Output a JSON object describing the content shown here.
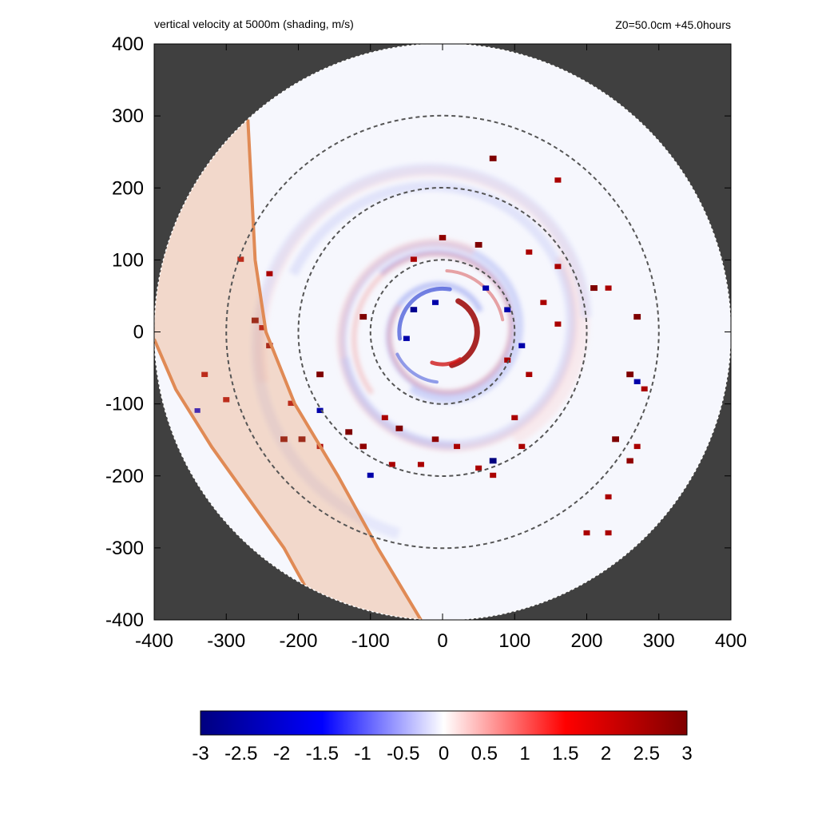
{
  "chart_data": {
    "type": "heatmap",
    "title": "vertical velocity at 5000m (shading, m/s)",
    "subtitle": "Z0=50.0cm  +45.0hours",
    "xlim": [
      -400,
      400
    ],
    "ylim": [
      -400,
      400
    ],
    "x_ticks": [
      -400,
      -300,
      -200,
      -100,
      0,
      100,
      200,
      300,
      400
    ],
    "y_ticks": [
      400,
      300,
      200,
      100,
      0,
      -100,
      -200,
      -300,
      -400
    ],
    "domain_radius": 400,
    "grid": false,
    "range_rings": [
      100,
      200,
      300
    ],
    "colorbar": {
      "min": -3,
      "max": 3,
      "ticks": [
        "-3",
        "-2.5",
        "-2",
        "-1.5",
        "-1",
        "-0.5",
        "0",
        "0.5",
        "1",
        "1.5",
        "2",
        "2.5",
        "3"
      ],
      "colors": [
        "#00007f",
        "#0000ff",
        "#ffffff",
        "#ff0000",
        "#7f0000"
      ]
    },
    "shaded_band": {
      "color": "#e8915a",
      "left_edge": [
        [
          -400,
          -10
        ],
        [
          -370,
          -80
        ],
        [
          -320,
          -160
        ],
        [
          -270,
          -230
        ],
        [
          -220,
          -300
        ],
        [
          -165,
          -400
        ]
      ],
      "right_edge": [
        [
          -270,
          295
        ],
        [
          -265,
          200
        ],
        [
          -260,
          100
        ],
        [
          -245,
          0
        ],
        [
          -205,
          -100
        ],
        [
          -145,
          -200
        ],
        [
          -90,
          -300
        ],
        [
          -30,
          -400
        ]
      ]
    },
    "updraft_cells": [
      [
        -260,
        15,
        3
      ],
      [
        -250,
        5,
        2.5
      ],
      [
        -240,
        -20,
        2.8
      ],
      [
        -210,
        -100,
        2.5
      ],
      [
        -220,
        -150,
        3
      ],
      [
        -195,
        -150,
        3
      ],
      [
        -170,
        -160,
        2.5
      ],
      [
        -130,
        -140,
        3
      ],
      [
        -110,
        -160,
        2.8
      ],
      [
        -80,
        -120,
        2.5
      ],
      [
        -60,
        -135,
        3
      ],
      [
        -70,
        -185,
        2.5
      ],
      [
        -10,
        -150,
        2.8
      ],
      [
        20,
        -160,
        2.5
      ],
      [
        -30,
        -185,
        2.5
      ],
      [
        50,
        -190,
        2.5
      ],
      [
        70,
        -200,
        2.5
      ],
      [
        -170,
        -60,
        3
      ],
      [
        100,
        -120,
        2.5
      ],
      [
        110,
        -160,
        2.5
      ],
      [
        -40,
        100,
        2.5
      ],
      [
        0,
        130,
        2.8
      ],
      [
        50,
        120,
        3
      ],
      [
        120,
        110,
        2.5
      ],
      [
        160,
        90,
        2.5
      ],
      [
        140,
        40,
        2.5
      ],
      [
        90,
        -40,
        2.5
      ],
      [
        120,
        -60,
        2.5
      ],
      [
        160,
        10,
        2.5
      ],
      [
        70,
        240,
        3
      ],
      [
        160,
        210,
        2.5
      ],
      [
        210,
        60,
        3
      ],
      [
        230,
        60,
        2.5
      ],
      [
        270,
        20,
        3
      ],
      [
        260,
        -60,
        3
      ],
      [
        280,
        -80,
        2.5
      ],
      [
        240,
        -150,
        3
      ],
      [
        270,
        -160,
        2.5
      ],
      [
        260,
        -180,
        2.8
      ],
      [
        230,
        -230,
        2.5
      ],
      [
        230,
        -280,
        2.5
      ],
      [
        200,
        -280,
        2.5
      ],
      [
        -300,
        -95,
        2.5
      ],
      [
        -330,
        -60,
        2.5
      ],
      [
        -280,
        100,
        2.5
      ],
      [
        -240,
        80,
        2.5
      ],
      [
        -110,
        20,
        3
      ]
    ],
    "downdraft_cells": [
      [
        -40,
        30,
        -2.8
      ],
      [
        -50,
        -10,
        -2.5
      ],
      [
        -10,
        40,
        -2.5
      ],
      [
        70,
        -180,
        -3
      ],
      [
        -100,
        -200,
        -2.5
      ],
      [
        60,
        60,
        -2.5
      ],
      [
        90,
        30,
        -2.5
      ],
      [
        270,
        -70,
        -2.5
      ],
      [
        -170,
        -110,
        -2.5
      ],
      [
        -340,
        -110,
        -2
      ],
      [
        110,
        -20,
        -2.5
      ]
    ]
  }
}
